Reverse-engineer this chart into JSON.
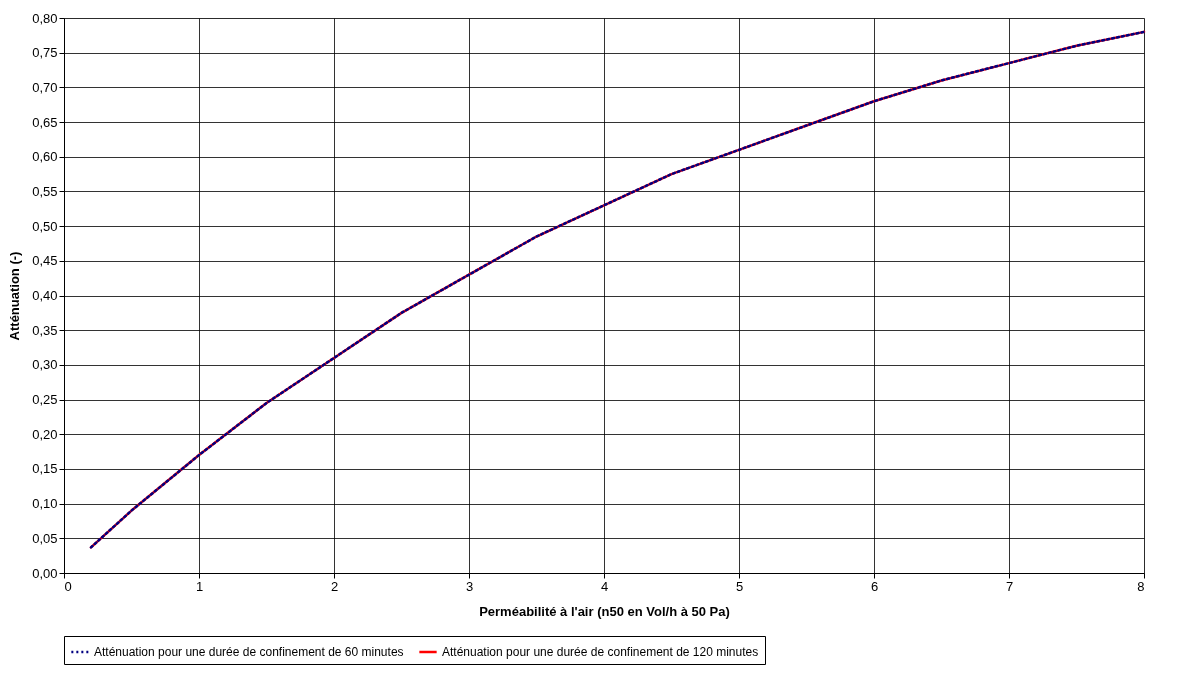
{
  "chart_data": {
    "type": "line",
    "xlabel": "Perméabilité à l'air (n50 en Vol/h à 50 Pa)",
    "ylabel": "Atténuation (-)",
    "x": [
      0.2,
      0.5,
      1,
      1.5,
      2,
      2.5,
      3,
      3.5,
      4,
      4.5,
      5,
      5.5,
      6,
      6.5,
      7,
      7.5,
      8
    ],
    "series": [
      {
        "name": "Atténuation pour une durée de confinement de 60 minutes",
        "color": "#000080",
        "line_style": "dotted",
        "values": [
          0.037,
          0.09,
          0.17,
          0.245,
          0.31,
          0.375,
          0.43,
          0.485,
          0.53,
          0.575,
          0.61,
          0.645,
          0.68,
          0.71,
          0.735,
          0.76,
          0.78
        ]
      },
      {
        "name": "Atténuation pour une durée de confinement de 120 minutes",
        "color": "#ff0000",
        "line_style": "solid",
        "values": [
          0.037,
          0.09,
          0.17,
          0.245,
          0.31,
          0.375,
          0.43,
          0.485,
          0.53,
          0.575,
          0.61,
          0.645,
          0.68,
          0.71,
          0.735,
          0.76,
          0.78
        ]
      }
    ],
    "xlim": [
      0,
      8
    ],
    "xticks": [
      0,
      1,
      2,
      3,
      4,
      5,
      6,
      7,
      8
    ],
    "ylim": [
      0,
      0.8
    ],
    "yticks": [
      {
        "value": 0,
        "label": "0,00"
      },
      {
        "value": 0.05,
        "label": "0,05"
      },
      {
        "value": 0.1,
        "label": "0,10"
      },
      {
        "value": 0.15,
        "label": "0,15"
      },
      {
        "value": 0.2,
        "label": "0,20"
      },
      {
        "value": 0.25,
        "label": "0,25"
      },
      {
        "value": 0.3,
        "label": "0,30"
      },
      {
        "value": 0.35,
        "label": "0,35"
      },
      {
        "value": 0.4,
        "label": "0,40"
      },
      {
        "value": 0.45,
        "label": "0,45"
      },
      {
        "value": 0.5,
        "label": "0,50"
      },
      {
        "value": 0.55,
        "label": "0,55"
      },
      {
        "value": 0.6,
        "label": "0,60"
      },
      {
        "value": 0.65,
        "label": "0,65"
      },
      {
        "value": 0.7,
        "label": "0,70"
      },
      {
        "value": 0.75,
        "label": "0,75"
      },
      {
        "value": 0.8,
        "label": "0,80"
      }
    ],
    "grid": true,
    "legend": "bottom",
    "marker": "none"
  }
}
